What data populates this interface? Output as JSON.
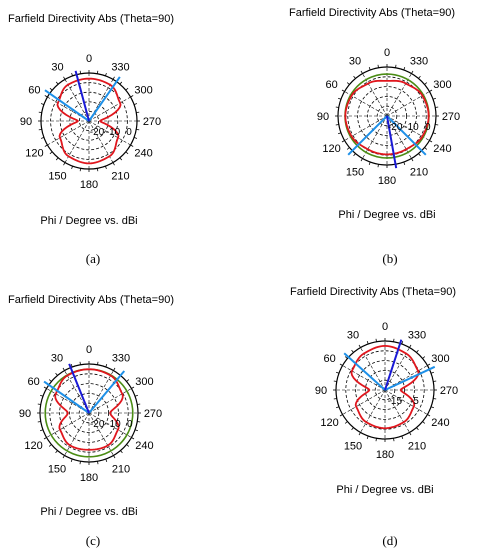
{
  "chart_data": [
    {
      "id": "a",
      "type": "polar",
      "title": "Farfield Directivity Abs (Theta=90)",
      "axis_label": "Phi / Degree vs. dBi",
      "caption": "(a)",
      "angle_ticks": [
        "0",
        "30",
        "60",
        "90",
        "120",
        "150",
        "180",
        "210",
        "240",
        "270",
        "300",
        "330"
      ],
      "angle_direction": "counterclockwise",
      "radial_tick_labels": [
        "-20",
        "-10",
        "0"
      ],
      "r_range": [
        -25,
        5
      ],
      "colors": {
        "pattern": "#e0161d",
        "main_lobe": "#1a1ad6",
        "beamwidth": "#1e90e8",
        "ref_circle": "#4a8c14",
        "grid": "#000000"
      },
      "main_lobe_dir": 15,
      "beamwidth_lines": [
        55,
        325
      ],
      "has_ref_circle": false,
      "series": [
        {
          "phi": [
            0,
            30,
            60,
            90,
            120,
            150,
            180,
            210,
            240,
            270,
            300,
            330,
            360
          ],
          "dbi": [
            1.5,
            1.2,
            -2.5,
            -18,
            -4,
            0.5,
            1.5,
            0.5,
            -4,
            -18,
            -2.5,
            1.2,
            1.5
          ]
        }
      ]
    },
    {
      "id": "b",
      "type": "polar",
      "title": "Farfield Directivity Abs (Theta=90)",
      "axis_label": "Phi / Degree vs. dBi",
      "caption": "(b)",
      "angle_ticks": [
        "0",
        "30",
        "60",
        "90",
        "120",
        "150",
        "180",
        "210",
        "240",
        "270",
        "300",
        "330"
      ],
      "angle_direction": "counterclockwise",
      "radial_tick_labels": [
        "-20",
        "-10",
        "0"
      ],
      "r_range": [
        -25,
        5
      ],
      "colors": {
        "pattern": "#e0161d",
        "main_lobe": "#1a1ad6",
        "beamwidth": "#1e90e8",
        "ref_circle": "#4a8c14",
        "grid": "#000000"
      },
      "main_lobe_dir": 190,
      "beamwidth_lines": [
        135,
        225
      ],
      "has_ref_circle": true,
      "ref_circle_dbi": 0.7,
      "series": [
        {
          "phi": [
            0,
            30,
            60,
            90,
            120,
            150,
            180,
            210,
            240,
            270,
            300,
            330,
            360
          ],
          "dbi": [
            -3.5,
            -2,
            0,
            0.5,
            0,
            -1.5,
            -1.5,
            -1.5,
            0,
            0.5,
            0,
            -2,
            -3.5
          ]
        }
      ]
    },
    {
      "id": "c",
      "type": "polar",
      "title": "Farfield Directivity Abs (Theta=90)",
      "axis_label": "Phi / Degree vs. dBi",
      "caption": "(c)",
      "angle_ticks": [
        "0",
        "30",
        "60",
        "90",
        "120",
        "150",
        "180",
        "210",
        "240",
        "270",
        "300",
        "330"
      ],
      "angle_direction": "counterclockwise",
      "radial_tick_labels": [
        "-20",
        "-10",
        "0"
      ],
      "r_range": [
        -25,
        5
      ],
      "colors": {
        "pattern": "#e0161d",
        "main_lobe": "#1a1ad6",
        "beamwidth": "#1e90e8",
        "ref_circle": "#4a8c14",
        "grid": "#000000"
      },
      "main_lobe_dir": 22,
      "beamwidth_lines": [
        55,
        320
      ],
      "has_ref_circle": true,
      "ref_circle_dbi": 1.8,
      "series": [
        {
          "phi": [
            0,
            30,
            60,
            90,
            120,
            150,
            180,
            210,
            240,
            270,
            300,
            330,
            360
          ],
          "dbi": [
            1.8,
            1.5,
            -1.5,
            -12,
            -4.5,
            -2,
            -2.5,
            -2,
            -4.5,
            -12,
            -1.5,
            1.5,
            1.8
          ]
        }
      ]
    },
    {
      "id": "d",
      "type": "polar",
      "title": "Farfield Directivity Abs (Theta=90)",
      "axis_label": "Phi / Degree vs. dBi",
      "caption": "(d)",
      "angle_ticks": [
        "0",
        "30",
        "60",
        "90",
        "120",
        "150",
        "180",
        "210",
        "240",
        "270",
        "300",
        "330"
      ],
      "angle_direction": "counterclockwise",
      "radial_tick_labels": [
        "-15",
        "-5"
      ],
      "r_range": [
        -20,
        5
      ],
      "colors": {
        "pattern": "#e0161d",
        "main_lobe": "#1a1ad6",
        "beamwidth": "#1e90e8",
        "ref_circle": "#4a8c14",
        "grid": "#000000"
      },
      "main_lobe_dir": 342,
      "beamwidth_lines": [
        48,
        295
      ],
      "has_ref_circle": false,
      "series": [
        {
          "phi": [
            0,
            30,
            60,
            90,
            120,
            150,
            180,
            210,
            240,
            270,
            300,
            330,
            360
          ],
          "dbi": [
            2.5,
            1.5,
            -0.5,
            -12,
            -3,
            -1,
            -0.5,
            -1,
            -3,
            -12,
            -0.5,
            1.5,
            2.5
          ]
        }
      ]
    }
  ]
}
